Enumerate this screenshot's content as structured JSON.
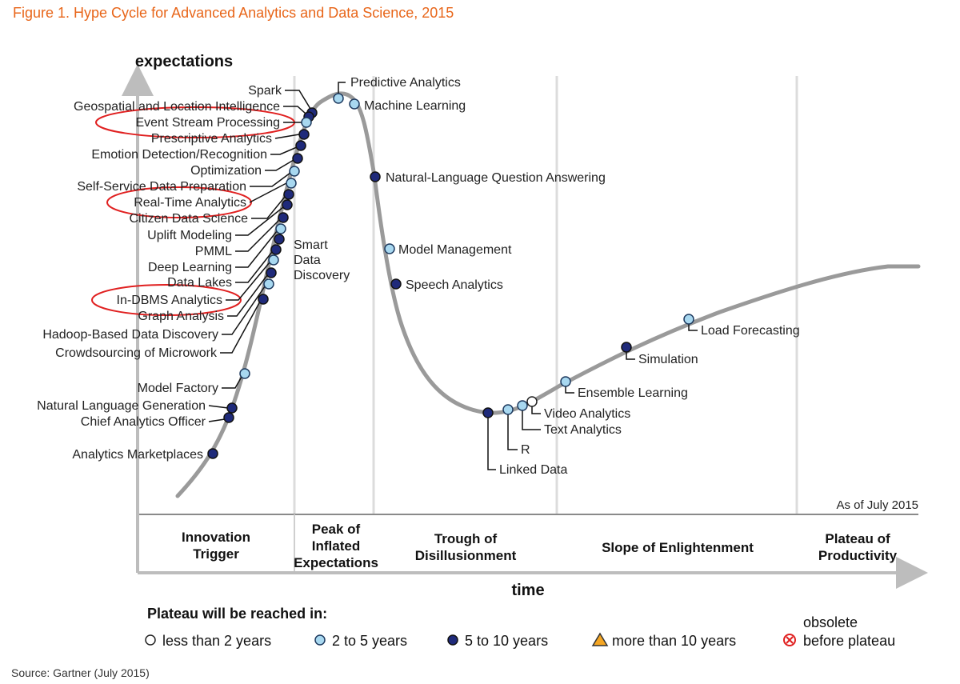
{
  "title": "Figure 1. Hype Cycle for Advanced Analytics and Data Science, 2015",
  "source": "Source: Gartner (July 2015)",
  "colors": {
    "title": "#e8661a",
    "curve": "#9a9a9a",
    "five_to_ten": "#1f2a7a",
    "two_to_five": "#a8d8f0",
    "less_than_two": "#ffffff",
    "more_than_ten": "#f5a623",
    "obsolete": "#e02020",
    "highlight": "#e02020"
  },
  "chart_data": {
    "type": "hype-cycle",
    "y_axis_label": "expectations",
    "x_axis_label": "time",
    "as_of": "As of July 2015",
    "phases": [
      {
        "lines": [
          "Innovation",
          "Trigger"
        ]
      },
      {
        "lines": [
          "Peak of",
          "Inflated",
          "Expectations"
        ]
      },
      {
        "lines": [
          "Trough of",
          "Disillusionment"
        ]
      },
      {
        "lines": [
          "Slope of Enlightenment"
        ]
      },
      {
        "lines": [
          "Plateau of",
          "Productivity"
        ]
      }
    ],
    "technologies": [
      {
        "name": "Predictive Analytics",
        "category": "2 to 5 years"
      },
      {
        "name": "Machine Learning",
        "category": "2 to 5 years"
      },
      {
        "name": "Spark",
        "category": "5 to 10 years"
      },
      {
        "name": "Geospatial and Location Intelligence",
        "category": "5 to 10 years"
      },
      {
        "name": "Event Stream Processing",
        "category": "2 to 5 years",
        "highlighted": true
      },
      {
        "name": "Prescriptive Analytics",
        "category": "5 to 10 years"
      },
      {
        "name": "Emotion Detection/Recognition",
        "category": "5 to 10 years"
      },
      {
        "name": "Optimization",
        "category": "5 to 10 years"
      },
      {
        "name": "Self-Service Data Preparation",
        "category": "2 to 5 years"
      },
      {
        "name": "Real-Time Analytics",
        "category": "2 to 5 years",
        "highlighted": true
      },
      {
        "name": "Citizen Data Science",
        "category": "5 to 10 years"
      },
      {
        "name": "Uplift Modeling",
        "category": "5 to 10 years"
      },
      {
        "name": "PMML",
        "category": "5 to 10 years"
      },
      {
        "name": "Deep Learning",
        "category": "2 to 5 years"
      },
      {
        "name": "Smart Data Discovery",
        "category": "5 to 10 years"
      },
      {
        "name": "Data Lakes",
        "category": "5 to 10 years"
      },
      {
        "name": "In-DBMS Analytics",
        "category": "2 to 5 years",
        "highlighted": true
      },
      {
        "name": "Graph Analysis",
        "category": "5 to 10 years"
      },
      {
        "name": "Hadoop-Based Data Discovery",
        "category": "2 to 5 years"
      },
      {
        "name": "Crowdsourcing of Microwork",
        "category": "5 to 10 years"
      },
      {
        "name": "Model Factory",
        "category": "2 to 5 years"
      },
      {
        "name": "Natural Language Generation",
        "category": "5 to 10 years"
      },
      {
        "name": "Chief Analytics Officer",
        "category": "5 to 10 years"
      },
      {
        "name": "Analytics Marketplaces",
        "category": "5 to 10 years"
      },
      {
        "name": "Natural-Language Question Answering",
        "category": "5 to 10 years"
      },
      {
        "name": "Model Management",
        "category": "2 to 5 years"
      },
      {
        "name": "Speech Analytics",
        "category": "5 to 10 years"
      },
      {
        "name": "Linked Data",
        "category": "5 to 10 years"
      },
      {
        "name": "R",
        "category": "2 to 5 years"
      },
      {
        "name": "Text Analytics",
        "category": "2 to 5 years"
      },
      {
        "name": "Video Analytics",
        "category": "less than 2 years"
      },
      {
        "name": "Ensemble Learning",
        "category": "2 to 5 years"
      },
      {
        "name": "Simulation",
        "category": "5 to 10 years"
      },
      {
        "name": "Load Forecasting",
        "category": "2 to 5 years"
      }
    ],
    "legend": {
      "title": "Plateau will be reached in:",
      "items": [
        {
          "label": "less than 2 years",
          "symbol": "circle-open"
        },
        {
          "label": "2 to 5 years",
          "symbol": "circle-light"
        },
        {
          "label": "5 to 10 years",
          "symbol": "circle-dark"
        },
        {
          "label": "more than 10 years",
          "symbol": "triangle"
        },
        {
          "label_lines": [
            "obsolete",
            "before plateau"
          ],
          "symbol": "crossed-circle"
        }
      ]
    }
  }
}
